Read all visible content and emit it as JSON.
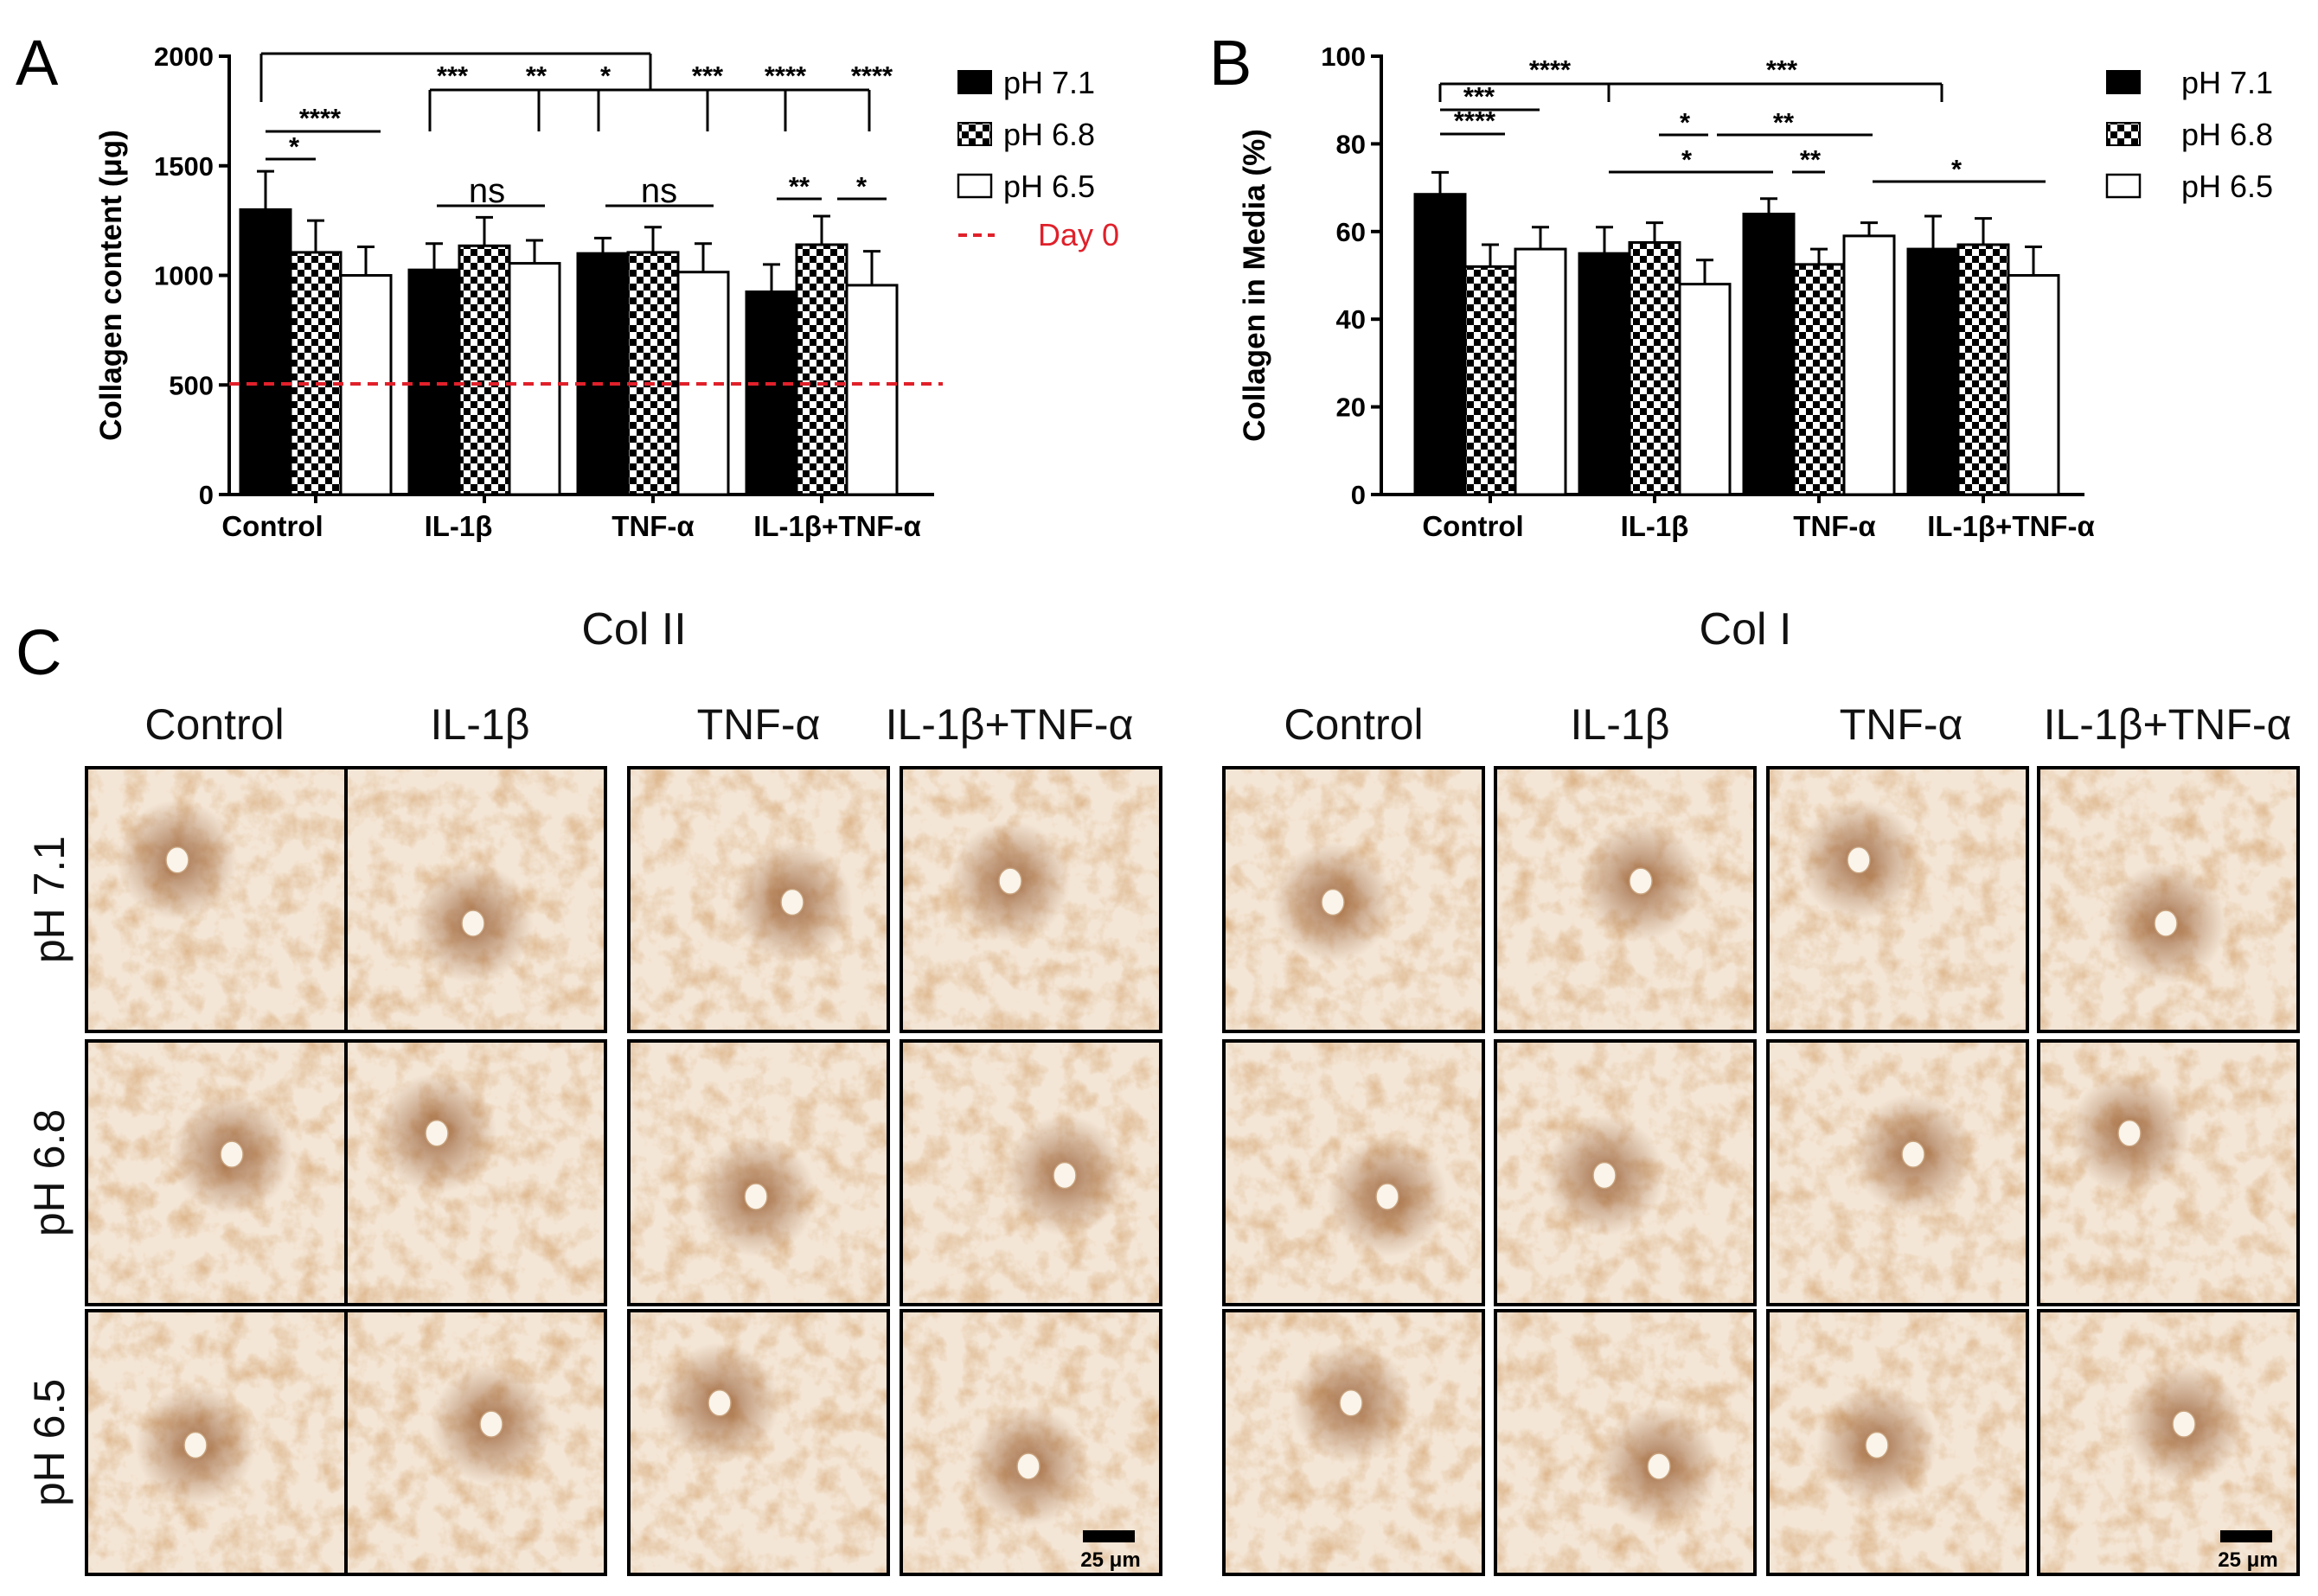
{
  "panel_labels": {
    "a": "A",
    "b": "B",
    "c": "C"
  },
  "legend": {
    "ph71": "pH 7.1",
    "ph68": "pH 6.8",
    "ph65": "pH 6.5",
    "day0": "Day 0"
  },
  "colors": {
    "day0_line": "#e0202a",
    "bar_dark": "#000000",
    "bar_light": "#ffffff"
  },
  "categories_a": [
    "Control",
    "IL-1β",
    "TNF-α",
    "IL-1β+TNF-α"
  ],
  "categories_b": [
    "Control",
    "IL-1β",
    "TNF-α",
    "IL-1β+TNF-α"
  ],
  "chart_data": [
    {
      "type": "bar",
      "id": "A",
      "title": "",
      "ylabel": "Collagen content (μg)",
      "xlabel": "",
      "ylim": [
        0,
        2000
      ],
      "yticks": [
        "0",
        "500",
        "1000",
        "1500",
        "2000"
      ],
      "categories": [
        "Control",
        "IL-1β",
        "TNF-α",
        "IL-1β+TNF-α"
      ],
      "series": [
        {
          "name": "pH 7.1",
          "values": [
            1300,
            1025,
            1100,
            925
          ],
          "errors": [
            175,
            120,
            70,
            125
          ]
        },
        {
          "name": "pH 6.8",
          "values": [
            1105,
            1135,
            1105,
            1140
          ],
          "errors": [
            145,
            130,
            115,
            130
          ]
        },
        {
          "name": "pH 6.5",
          "values": [
            1000,
            1055,
            1015,
            955
          ],
          "errors": [
            130,
            105,
            130,
            155
          ]
        }
      ],
      "reference_line": {
        "name": "Day 0",
        "value": 505
      },
      "significance": [
        "*",
        "****",
        "ns",
        "ns",
        "**",
        "*",
        "***",
        "**",
        "*",
        "***",
        "****",
        "****"
      ]
    },
    {
      "type": "bar",
      "id": "B",
      "title": "",
      "ylabel": "Collagen in Media (%)",
      "xlabel": "",
      "ylim": [
        0,
        100
      ],
      "yticks": [
        "0",
        "20",
        "40",
        "60",
        "80",
        "100"
      ],
      "categories": [
        "Control",
        "IL-1β",
        "TNF-α",
        "IL-1β+TNF-α"
      ],
      "series": [
        {
          "name": "pH 7.1",
          "values": [
            68.5,
            55,
            64,
            56
          ],
          "errors": [
            5,
            6,
            3.5,
            7.5
          ]
        },
        {
          "name": "pH 6.8",
          "values": [
            52,
            57.5,
            52.5,
            57
          ],
          "errors": [
            5,
            4.5,
            3.5,
            6
          ]
        },
        {
          "name": "pH 6.5",
          "values": [
            56,
            48,
            59,
            50
          ],
          "errors": [
            5,
            5.5,
            3,
            6.5
          ]
        }
      ],
      "significance": [
        "****",
        "***",
        "****",
        "***",
        "*",
        "**",
        "*",
        "**",
        "*"
      ]
    }
  ],
  "panel_c": {
    "group_col2": "Col II",
    "group_col1": "Col I",
    "col_headers": [
      "Control",
      "IL-1β",
      "TNF-α",
      "IL-1β+TNF-α"
    ],
    "row_headers": [
      "pH 7.1",
      "pH 6.8",
      "pH 6.5"
    ],
    "scale_label": "25 μm"
  }
}
